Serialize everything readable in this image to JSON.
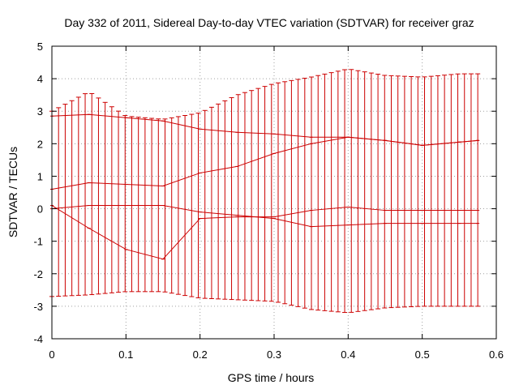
{
  "chart_data": {
    "type": "line",
    "title": "Day 332 of 2011, Sidereal Day-to-day VTEC variation (SDTVAR) for receiver graz",
    "xlabel": "GPS time / hours",
    "ylabel": "SDTVAR / TECUs",
    "xlim": [
      0,
      0.6
    ],
    "ylim": [
      -4,
      5
    ],
    "xticks": [
      "0",
      "0.1",
      "0.2",
      "0.3",
      "0.4",
      "0.5",
      "0.6"
    ],
    "yticks": [
      "-4",
      "-3",
      "-2",
      "-1",
      "0",
      "1",
      "2",
      "3",
      "4",
      "5"
    ],
    "grid": true,
    "legend": "none",
    "error_bars": true,
    "color": "#cc0000",
    "x": [
      0.0,
      0.05,
      0.1,
      0.15,
      0.2,
      0.25,
      0.3,
      0.35,
      0.4,
      0.45,
      0.5,
      0.55,
      0.575
    ],
    "series": [
      {
        "values": [
          0.0,
          0.1,
          0.1,
          0.1,
          -0.1,
          -0.2,
          -0.3,
          -0.55,
          -0.5,
          -0.45,
          -0.45,
          -0.45,
          -0.45
        ]
      },
      {
        "values": [
          0.6,
          0.8,
          0.75,
          0.7,
          1.1,
          1.3,
          1.7,
          2.0,
          2.2,
          2.1,
          1.95,
          2.05,
          2.1
        ]
      },
      {
        "values": [
          2.85,
          2.9,
          2.8,
          2.7,
          2.45,
          2.35,
          2.3,
          2.2,
          2.2,
          2.1,
          1.95,
          2.05,
          2.1
        ]
      },
      {
        "values": [
          0.1,
          -0.6,
          -1.25,
          -1.55,
          -0.3,
          -0.25,
          -0.25,
          -0.05,
          0.05,
          -0.05,
          -0.05,
          -0.05,
          -0.05
        ]
      }
    ],
    "error_band": {
      "upper": [
        3.0,
        3.6,
        2.85,
        2.75,
        2.95,
        3.5,
        3.85,
        4.05,
        4.3,
        4.1,
        4.05,
        4.15,
        4.15
      ],
      "lower": [
        -2.7,
        -2.65,
        -2.55,
        -2.55,
        -2.75,
        -2.8,
        -2.85,
        -3.1,
        -3.2,
        -3.05,
        -3.0,
        -3.0,
        -3.0
      ]
    }
  }
}
